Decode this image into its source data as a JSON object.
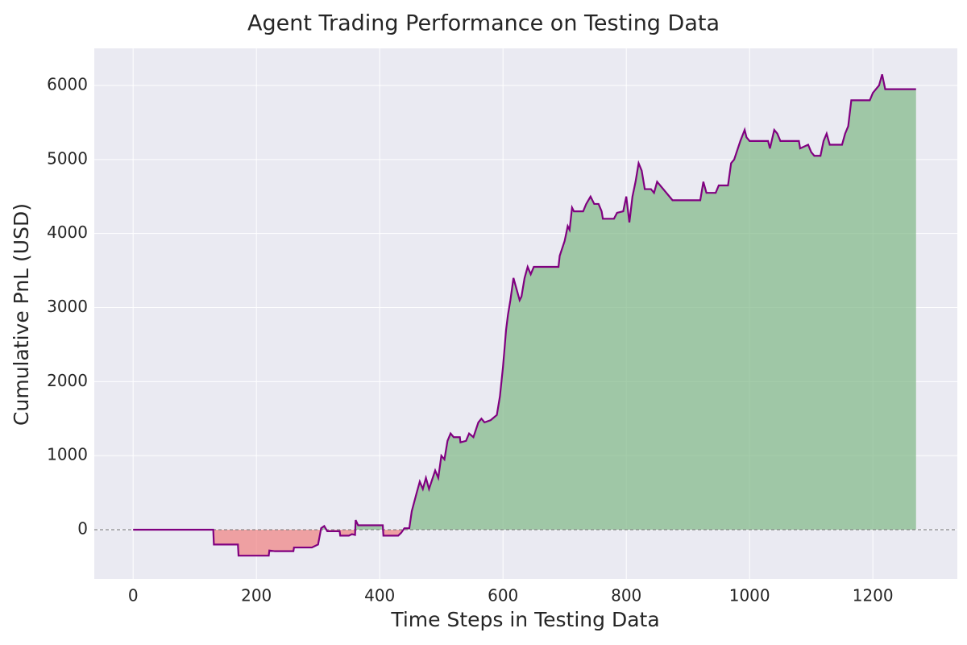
{
  "chart_data": {
    "type": "line",
    "title": "Agent Trading Performance on Testing Data",
    "xlabel": "Time Steps in Testing Data",
    "ylabel": "Cumulative PnL (USD)",
    "x": [
      0,
      130,
      131,
      170,
      171,
      220,
      221,
      230,
      260,
      261,
      290,
      300,
      305,
      310,
      315,
      335,
      336,
      350,
      355,
      360,
      361,
      365,
      405,
      406,
      430,
      435,
      440,
      448,
      452,
      460,
      465,
      470,
      475,
      480,
      490,
      495,
      500,
      505,
      510,
      515,
      520,
      530,
      531,
      540,
      545,
      552,
      560,
      565,
      570,
      580,
      590,
      595,
      600,
      605,
      608,
      612,
      617,
      622,
      627,
      630,
      635,
      640,
      645,
      650,
      690,
      692,
      700,
      705,
      708,
      712,
      715,
      730,
      735,
      742,
      748,
      755,
      760,
      762,
      780,
      785,
      795,
      800,
      805,
      810,
      815,
      820,
      825,
      830,
      840,
      845,
      850,
      860,
      870,
      875,
      920,
      925,
      930,
      945,
      950,
      965,
      970,
      975,
      985,
      992,
      995,
      1000,
      1030,
      1033,
      1040,
      1045,
      1050,
      1080,
      1082,
      1095,
      1100,
      1105,
      1115,
      1120,
      1125,
      1130,
      1150,
      1155,
      1160,
      1165,
      1195,
      1200,
      1210,
      1215,
      1220,
      1270
    ],
    "values": [
      0,
      0,
      -200,
      -200,
      -350,
      -350,
      -280,
      -290,
      -290,
      -240,
      -240,
      -200,
      20,
      50,
      -20,
      -20,
      -80,
      -80,
      -60,
      -70,
      130,
      60,
      60,
      -80,
      -80,
      -40,
      20,
      20,
      250,
      500,
      650,
      550,
      700,
      550,
      800,
      700,
      1000,
      950,
      1200,
      1300,
      1250,
      1250,
      1180,
      1200,
      1300,
      1250,
      1450,
      1500,
      1450,
      1480,
      1550,
      1800,
      2200,
      2700,
      2900,
      3100,
      3400,
      3250,
      3100,
      3150,
      3400,
      3550,
      3450,
      3550,
      3550,
      3700,
      3900,
      4100,
      4050,
      4350,
      4300,
      4300,
      4400,
      4500,
      4400,
      4400,
      4300,
      4200,
      4200,
      4280,
      4300,
      4500,
      4150,
      4500,
      4700,
      4950,
      4850,
      4600,
      4600,
      4550,
      4700,
      4600,
      4500,
      4450,
      4450,
      4700,
      4550,
      4550,
      4650,
      4650,
      4950,
      5000,
      5250,
      5400,
      5300,
      5250,
      5250,
      5150,
      5400,
      5350,
      5250,
      5250,
      5150,
      5200,
      5100,
      5050,
      5050,
      5250,
      5350,
      5200,
      5200,
      5350,
      5450,
      5800,
      5800,
      5900,
      6000,
      6150,
      5950,
      5950
    ],
    "color": "#800080",
    "fill_positive_color": "#7fb886",
    "fill_negative_color": "#f08080",
    "zero_line": true,
    "grid": true,
    "xlim": [
      -63,
      1337
    ],
    "ylim": [
      -664,
      6501
    ],
    "xticks": [
      0,
      200,
      400,
      600,
      800,
      1000,
      1200
    ],
    "yticks": [
      0,
      1000,
      2000,
      3000,
      4000,
      5000,
      6000
    ]
  }
}
